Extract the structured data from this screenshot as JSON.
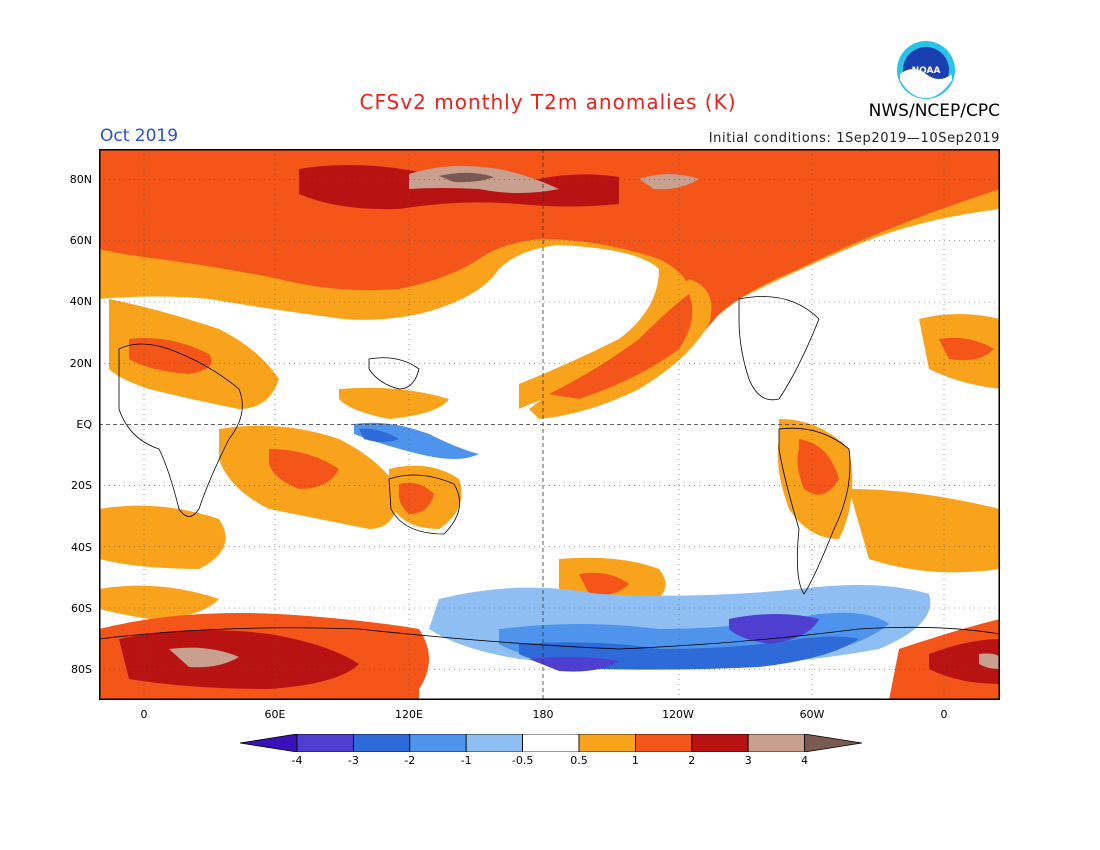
{
  "header": {
    "title": "CFSv2 monthly T2m anomalies (K)",
    "month": "Oct 2019",
    "initial_conditions": "Initial conditions: 1Sep2019—10Sep2019",
    "agency": "NWS/NCEP/CPC",
    "logo_text": "NOAA",
    "title_color": "#e8221e",
    "month_color": "#2a4fd8"
  },
  "map": {
    "projection": "cylindrical equidistant, 0° to 380°E",
    "lat_labels": [
      "80N",
      "60N",
      "40N",
      "20N",
      "EQ",
      "20S",
      "40S",
      "60S",
      "80S"
    ],
    "lon_labels": [
      "0",
      "60E",
      "120E",
      "180",
      "120W",
      "60W",
      "0"
    ],
    "reference_lines": [
      "equator",
      "dateline"
    ],
    "grid": "dotted 20° lat / 60° lon"
  },
  "colorbar": {
    "labels": [
      "-4",
      "-3",
      "-2",
      "-1",
      "-0.5",
      "0.5",
      "1",
      "2",
      "3",
      "4"
    ],
    "colors": [
      "#3a10b8",
      "#4e3fd0",
      "#2e6ad8",
      "#4f94ec",
      "#8fbff2",
      "#ffffff",
      "#f9a31c",
      "#f45518",
      "#b81212",
      "#c9a090",
      "#7a5a50"
    ],
    "units": "K"
  }
}
